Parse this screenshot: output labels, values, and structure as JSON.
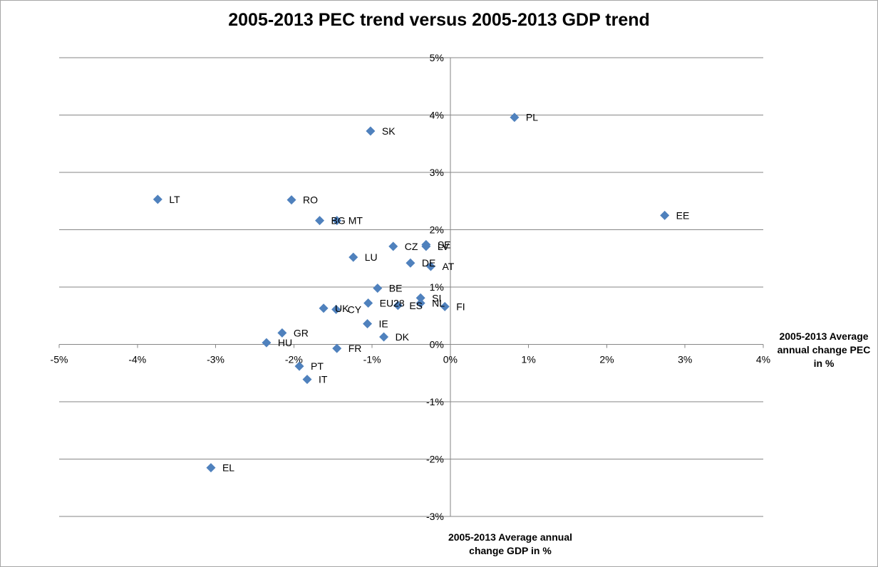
{
  "chart_data": {
    "type": "scatter",
    "title": "2005-2013 PEC trend versus 2005-2013 GDP trend",
    "xlabel_lines": [
      "2005-2013 Average annual",
      "change GDP in %"
    ],
    "ylabel_lines": [
      "2005-2013 Average",
      "annual change PEC",
      "in %"
    ],
    "xlim": [
      -5,
      4
    ],
    "ylim": [
      -3,
      5
    ],
    "x_ticks": [
      -5,
      -4,
      -3,
      -2,
      -1,
      0,
      1,
      2,
      3,
      4
    ],
    "y_ticks": [
      -3,
      -2,
      -1,
      0,
      1,
      2,
      3,
      4,
      5
    ],
    "x_tick_labels": [
      "-5%",
      "-4%",
      "-3%",
      "-2%",
      "-1%",
      "0%",
      "1%",
      "2%",
      "3%",
      "4%"
    ],
    "y_tick_labels": [
      "-3%",
      "-2%",
      "-1%",
      "0%",
      "1%",
      "2%",
      "3%",
      "4%",
      "5%"
    ],
    "grid": "horizontal",
    "marker_color": "#4f81bd",
    "points": [
      {
        "label": "PL",
        "x": 0.82,
        "y": 3.96
      },
      {
        "label": "SK",
        "x": -1.02,
        "y": 3.72
      },
      {
        "label": "LT",
        "x": -3.74,
        "y": 2.53
      },
      {
        "label": "RO",
        "x": -2.03,
        "y": 2.52
      },
      {
        "label": "EE",
        "x": 2.74,
        "y": 2.25
      },
      {
        "label": "BG",
        "x": -1.67,
        "y": 2.16
      },
      {
        "label": "MT",
        "x": -1.45,
        "y": 2.16
      },
      {
        "label": "CZ",
        "x": -0.73,
        "y": 1.71
      },
      {
        "label": "SE",
        "x": -0.31,
        "y": 1.74
      },
      {
        "label": "LV",
        "x": -0.31,
        "y": 1.71
      },
      {
        "label": "LU",
        "x": -1.24,
        "y": 1.52
      },
      {
        "label": "DE",
        "x": -0.51,
        "y": 1.42
      },
      {
        "label": "AT",
        "x": -0.25,
        "y": 1.36
      },
      {
        "label": "BE",
        "x": -0.93,
        "y": 0.98
      },
      {
        "label": "SI",
        "x": -0.38,
        "y": 0.81
      },
      {
        "label": "NL",
        "x": -0.38,
        "y": 0.72
      },
      {
        "label": "FI",
        "x": -0.07,
        "y": 0.66
      },
      {
        "label": "EU28",
        "x": -1.05,
        "y": 0.72
      },
      {
        "label": "ES",
        "x": -0.67,
        "y": 0.68
      },
      {
        "label": "UK",
        "x": -1.62,
        "y": 0.63
      },
      {
        "label": "CY",
        "x": -1.46,
        "y": 0.61
      },
      {
        "label": "IE",
        "x": -1.06,
        "y": 0.36
      },
      {
        "label": "DK",
        "x": -0.85,
        "y": 0.13
      },
      {
        "label": "GR",
        "x": -2.15,
        "y": 0.2
      },
      {
        "label": "HU",
        "x": -2.35,
        "y": 0.03
      },
      {
        "label": "FR",
        "x": -1.45,
        "y": -0.07
      },
      {
        "label": "PT",
        "x": -1.93,
        "y": -0.38
      },
      {
        "label": "IT",
        "x": -1.83,
        "y": -0.61
      },
      {
        "label": "EL",
        "x": -3.06,
        "y": -2.15
      }
    ]
  }
}
